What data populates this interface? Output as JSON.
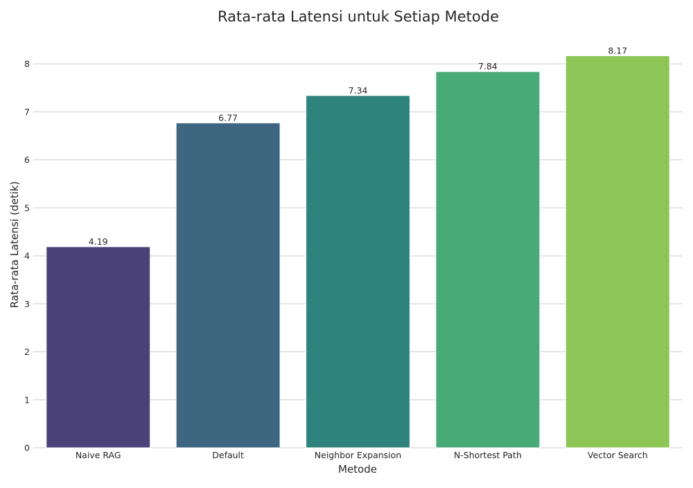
{
  "chart_data": {
    "type": "bar",
    "title": "Rata-rata Latensi untuk Setiap Metode",
    "xlabel": "Metode",
    "ylabel": "Rata-rata Latensi (detik)",
    "categories": [
      "Naive RAG",
      "Default",
      "Neighbor Expansion",
      "N-Shortest Path",
      "Vector Search"
    ],
    "values": [
      4.19,
      6.77,
      7.34,
      7.84,
      8.17
    ],
    "value_labels": [
      "4.19",
      "6.77",
      "7.34",
      "7.84",
      "8.17"
    ],
    "ylim": [
      0,
      8.58
    ],
    "yticks": [
      0,
      1,
      2,
      3,
      4,
      5,
      6,
      7,
      8
    ],
    "grid": true,
    "colors": [
      "#4b4279",
      "#3e6680",
      "#2e847d",
      "#48aa77",
      "#8dc556"
    ]
  }
}
